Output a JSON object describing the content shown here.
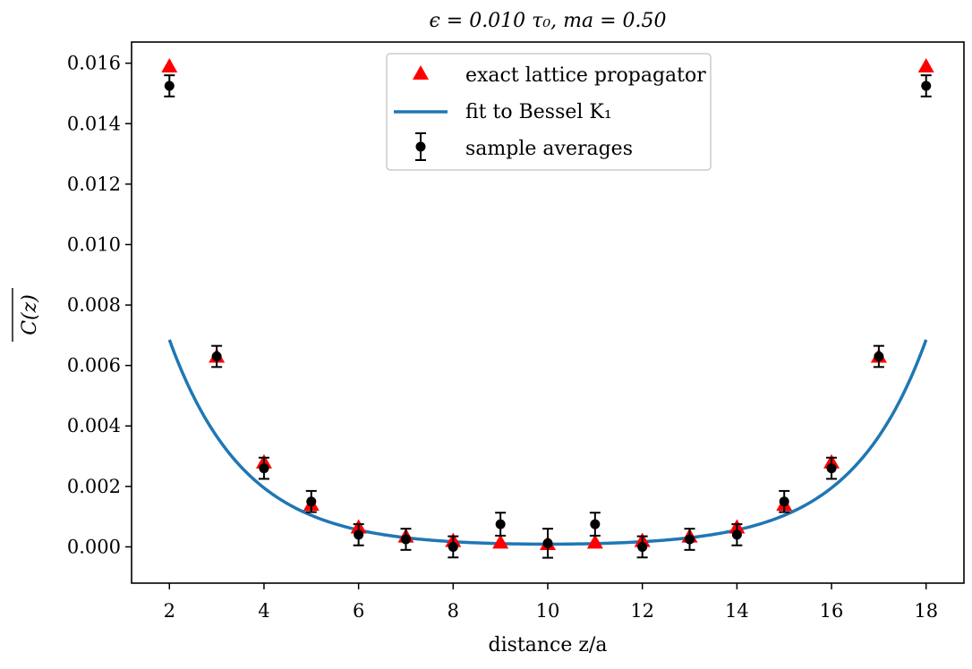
{
  "chart_data": {
    "type": "scatter",
    "title": "ϵ = 0.010 τ₀,  ma = 0.50",
    "xlabel": "distance  z/a",
    "ylabel": "C(z)",
    "xlim": [
      1.2,
      18.8
    ],
    "ylim": [
      -0.0012,
      0.0167
    ],
    "xticks": [
      2,
      4,
      6,
      8,
      10,
      12,
      14,
      16,
      18
    ],
    "xtick_labels": [
      "2",
      "4",
      "6",
      "8",
      "10",
      "12",
      "14",
      "16",
      "18"
    ],
    "yticks": [
      0.0,
      0.002,
      0.004,
      0.006,
      0.008,
      0.01,
      0.012,
      0.014,
      0.016
    ],
    "ytick_labels": [
      "0.000",
      "0.002",
      "0.004",
      "0.006",
      "0.008",
      "0.010",
      "0.012",
      "0.014",
      "0.016"
    ],
    "legend_position": "top-center",
    "series": [
      {
        "name": "exact lattice propagator",
        "kind": "triangles",
        "color": "#ff0000",
        "x": [
          2,
          3,
          4,
          5,
          6,
          7,
          8,
          9,
          10,
          11,
          12,
          13,
          14,
          15,
          16,
          17,
          18
        ],
        "y": [
          0.0159,
          0.0063,
          0.0028,
          0.0014,
          0.00065,
          0.00035,
          0.0002,
          0.00015,
          0.0001,
          0.00015,
          0.0002,
          0.00035,
          0.00065,
          0.0014,
          0.0028,
          0.0063,
          0.0159
        ]
      },
      {
        "name": "fit to Bessel K₁",
        "kind": "line",
        "color": "#1f77b4",
        "x_range": [
          2,
          18
        ],
        "center": 10,
        "amplitude": 9e-05,
        "rate": 0.6282
      },
      {
        "name": "sample averages",
        "kind": "errorbar",
        "color": "#000000",
        "x": [
          2,
          3,
          4,
          5,
          6,
          7,
          8,
          9,
          10,
          11,
          12,
          13,
          14,
          15,
          16,
          17,
          18
        ],
        "y": [
          0.01525,
          0.0063,
          0.0026,
          0.0015,
          0.0004,
          0.00025,
          0.0,
          0.00075,
          0.00012,
          0.00075,
          0.0,
          0.00025,
          0.0004,
          0.0015,
          0.0026,
          0.0063,
          0.01525
        ],
        "err": [
          0.00035,
          0.00035,
          0.00035,
          0.00035,
          0.00035,
          0.00035,
          0.00035,
          0.00038,
          0.00048,
          0.00038,
          0.00035,
          0.00035,
          0.00035,
          0.00035,
          0.00035,
          0.00035,
          0.00035
        ]
      }
    ]
  }
}
